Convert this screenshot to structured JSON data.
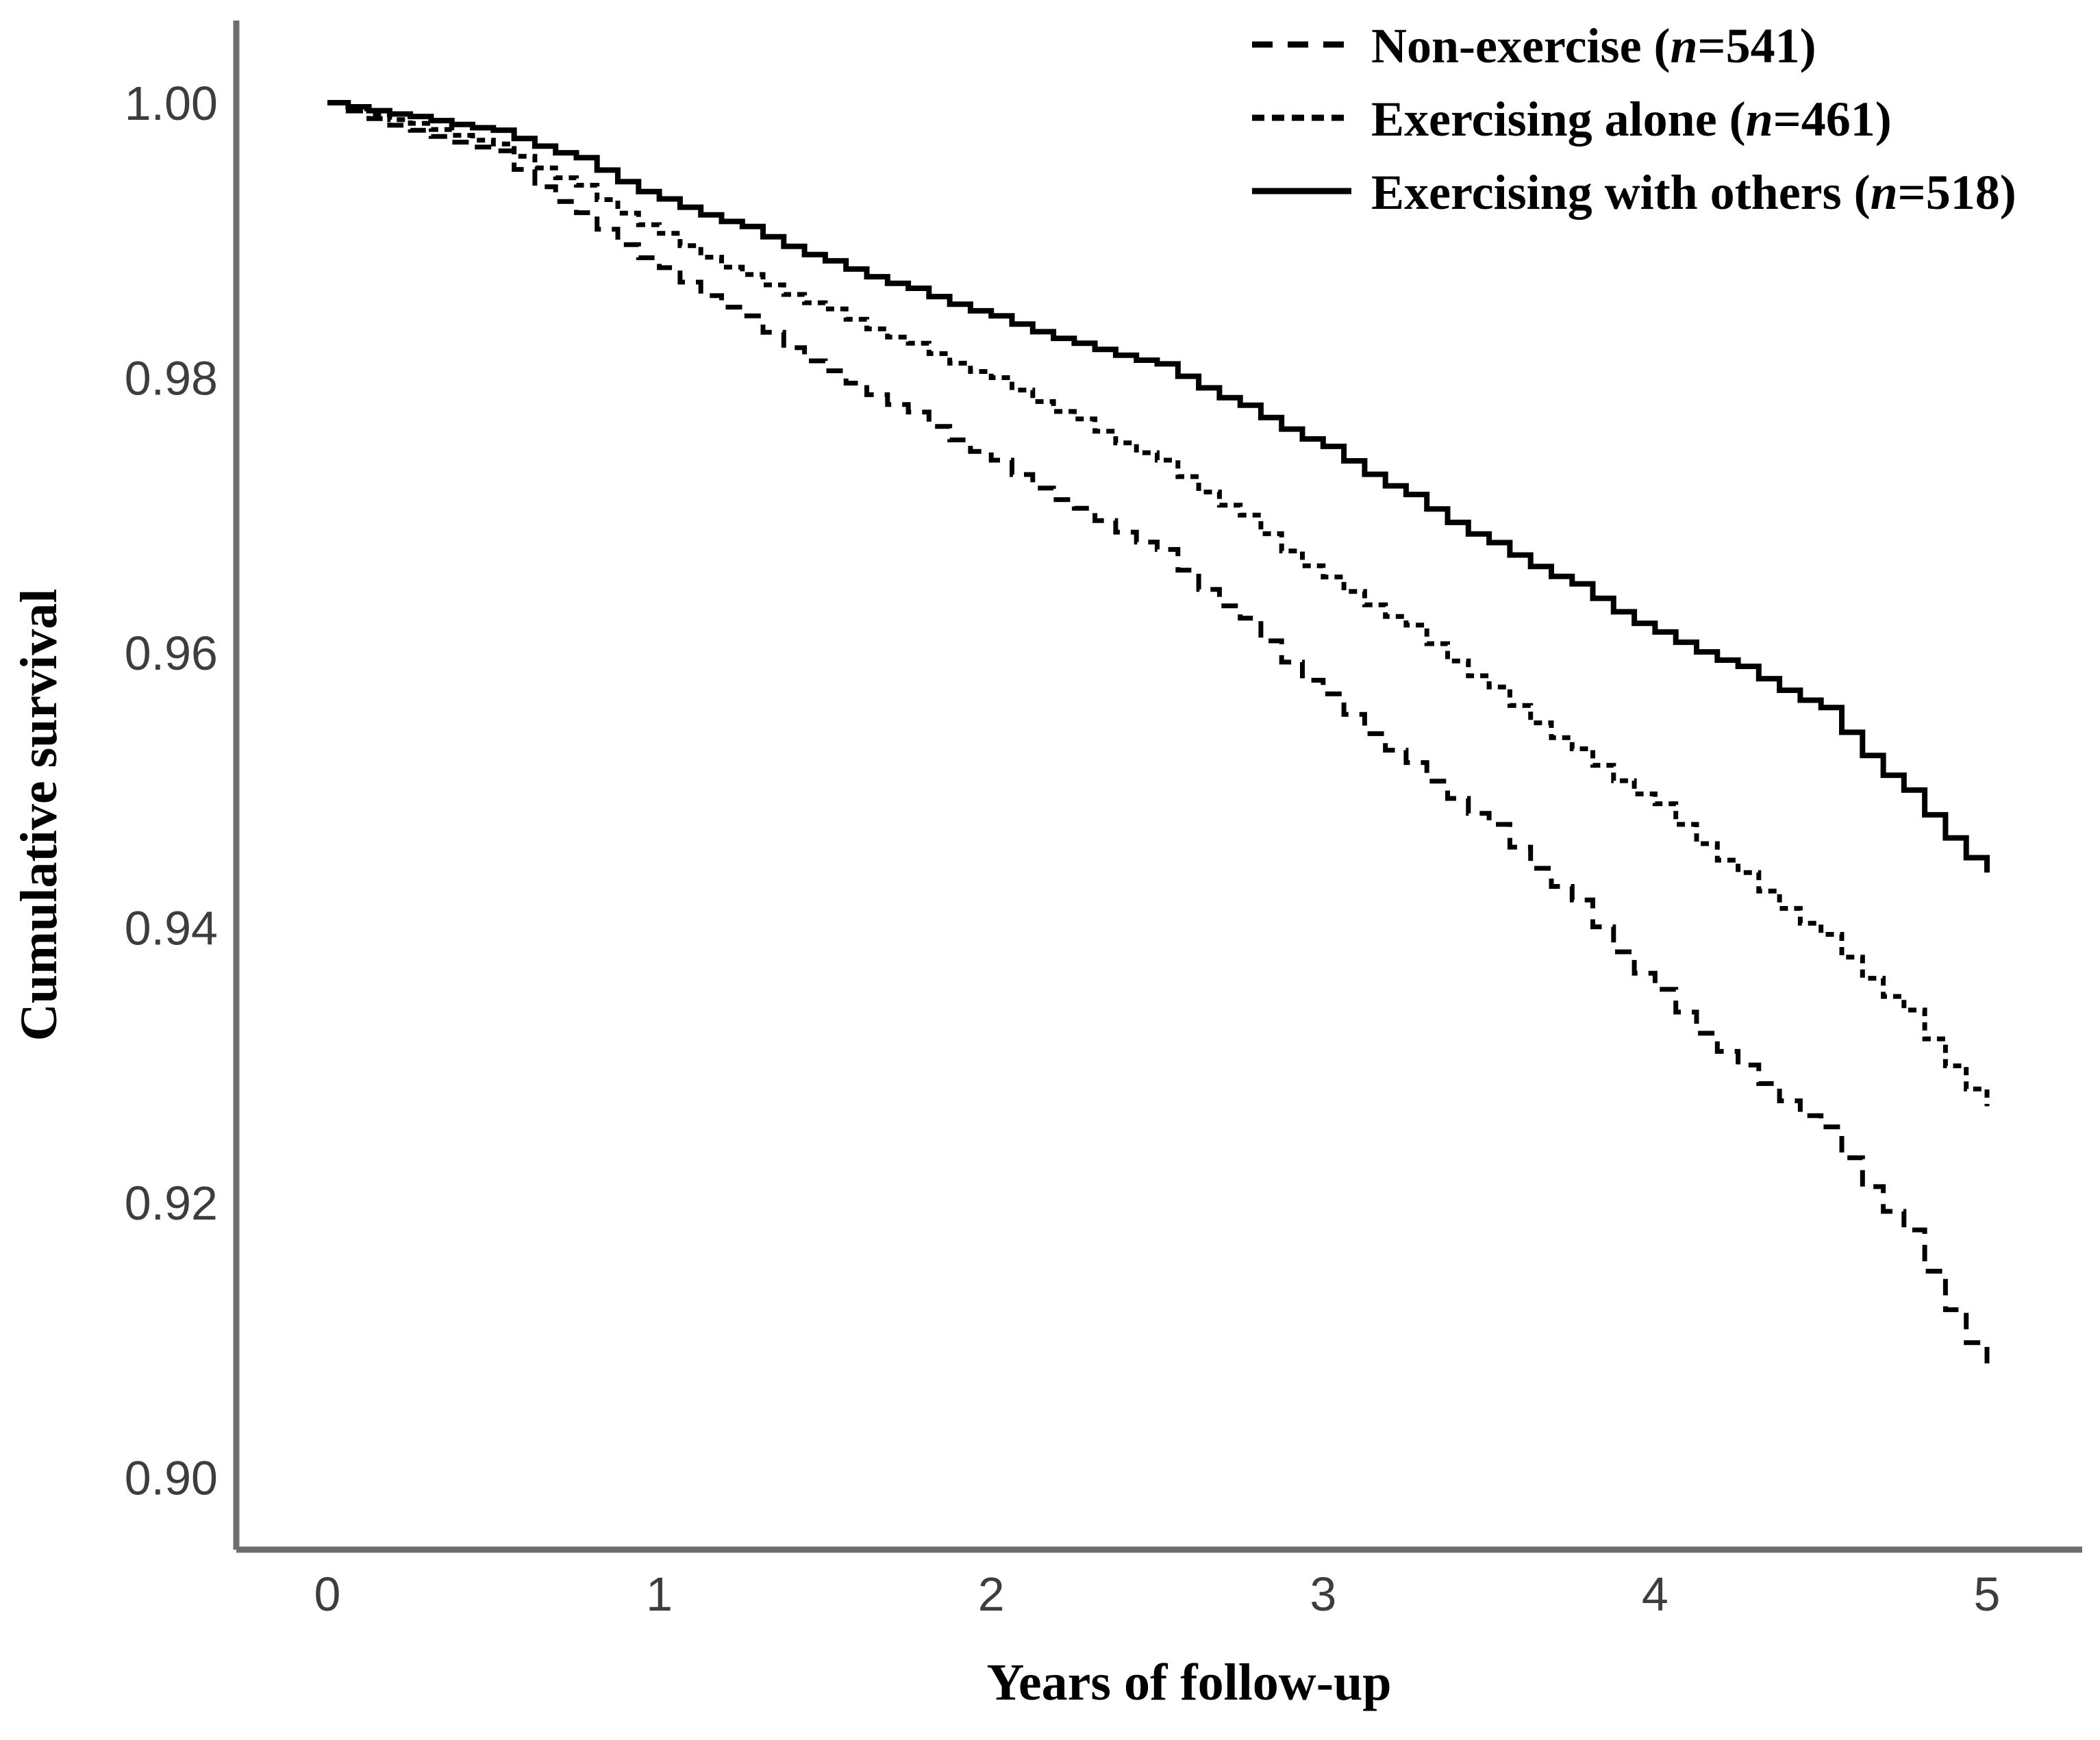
{
  "chart_data": {
    "type": "line",
    "subtype": "kaplan_meier_step",
    "title": "",
    "xlabel": "Years of follow-up",
    "ylabel": "Cumulative survival",
    "xlim": [
      0,
      5
    ],
    "ylim": [
      0.9,
      1.0
    ],
    "grid": false,
    "legend_position": "top-right",
    "x_ticks": {
      "values": [
        0,
        1,
        2,
        3,
        4,
        5
      ],
      "labels": [
        "0",
        "1",
        "2",
        "3",
        "4",
        "5"
      ]
    },
    "y_ticks": {
      "values": [
        1.0,
        0.98,
        0.96,
        0.94,
        0.92,
        0.9
      ],
      "labels": [
        "1.00",
        "0.98",
        "0.96",
        "0.94",
        "0.92",
        "0.90"
      ]
    },
    "x": [
      0,
      0.25,
      0.5,
      0.75,
      1,
      1.25,
      1.5,
      1.75,
      2,
      2.25,
      2.5,
      2.75,
      3,
      3.25,
      3.5,
      3.75,
      4,
      4.25,
      4.5,
      4.75,
      5
    ],
    "series": [
      {
        "name": "Non-exercise",
        "n": 541,
        "legend_label": "Non-exercise (n=541)",
        "line_style": "dashed-long",
        "values": [
          1.0,
          0.998,
          0.9965,
          0.992,
          0.988,
          0.9845,
          0.9805,
          0.9775,
          0.974,
          0.9705,
          0.9675,
          0.9625,
          0.957,
          0.952,
          0.9475,
          0.942,
          0.9355,
          0.93,
          0.9255,
          0.918,
          0.908
        ]
      },
      {
        "name": "Exercising alone",
        "n": 461,
        "legend_label": "Exercising alone (n=461)",
        "line_style": "dashed-short",
        "values": [
          1.0,
          0.9985,
          0.997,
          0.994,
          0.9905,
          0.9875,
          0.985,
          0.9825,
          0.98,
          0.977,
          0.974,
          0.97,
          0.9655,
          0.962,
          0.9575,
          0.953,
          0.949,
          0.944,
          0.9395,
          0.934,
          0.927
        ]
      },
      {
        "name": "Exercising with others",
        "n": 518,
        "legend_label": "Exercising with others (n=518)",
        "line_style": "solid",
        "values": [
          1.0,
          0.999,
          0.998,
          0.996,
          0.993,
          0.991,
          0.9885,
          0.9865,
          0.9845,
          0.9825,
          0.981,
          0.978,
          0.975,
          0.9715,
          0.968,
          0.965,
          0.9615,
          0.959,
          0.956,
          0.95,
          0.944
        ]
      }
    ]
  },
  "styles": {
    "line_color": "#000000",
    "axis_color": "#6e6e6e",
    "tick_label_color": "#3d3d3d",
    "text_color": "#000000",
    "background": "#ffffff"
  }
}
